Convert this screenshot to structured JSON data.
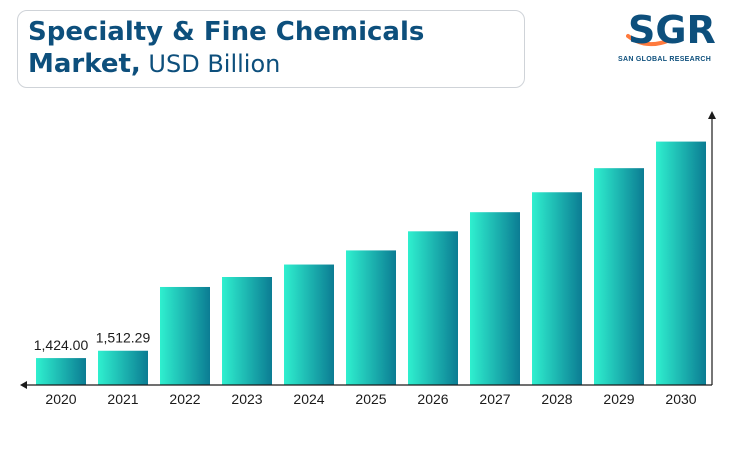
{
  "header": {
    "title_line1": "Specialty & Fine Chemicals",
    "title_line2_bold": "Market,",
    "title_line2_unit": " USD Billion"
  },
  "logo": {
    "mark": "SGR",
    "text": "SAN GLOBAL RESEARCH",
    "colors": {
      "primary": "#0d4f7c",
      "accent": "#ff7a3d"
    }
  },
  "colors": {
    "bar_start": "#2ff0cf",
    "bar_end": "#0b7c93",
    "axis": "#1b1b1b"
  },
  "chart_data": {
    "type": "bar",
    "title": "Specialty & Fine Chemicals Market, USD Billion",
    "categories": [
      "2020",
      "2021",
      "2022",
      "2023",
      "2024",
      "2025",
      "2026",
      "2027",
      "2028",
      "2029",
      "2030"
    ],
    "values": [
      1424.0,
      1512.29,
      2280,
      2400,
      2550,
      2720,
      2950,
      3180,
      3420,
      3710,
      4030
    ],
    "data_labels": [
      "1,424.00",
      "1,512.29",
      "",
      "",
      "",
      "",
      "",
      "",
      "",
      "",
      ""
    ],
    "ylim": [
      1100,
      4350
    ],
    "xlabel": "",
    "ylabel": "",
    "grid": false,
    "legend": "none"
  }
}
